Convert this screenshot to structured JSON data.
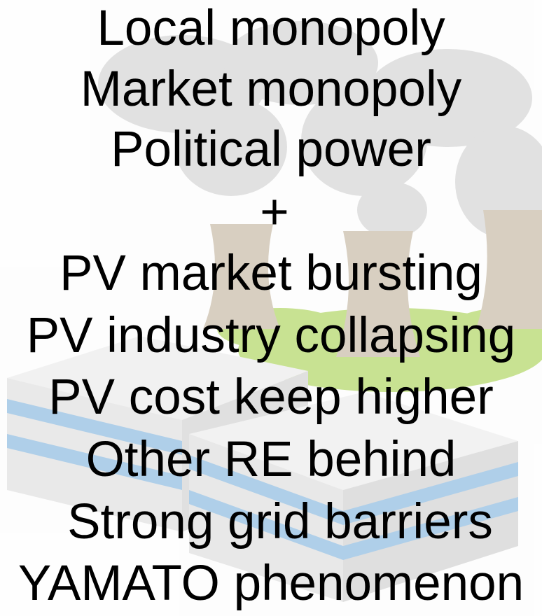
{
  "lines": [
    "Local monopoly",
    "Market monopoly",
    "Political power",
    "+",
    "PV market bursting",
    "PV industry collapsing",
    "PV cost keep higher",
    "Other RE behind",
    "Strong grid barriers",
    "YAMATO phenomenon"
  ]
}
